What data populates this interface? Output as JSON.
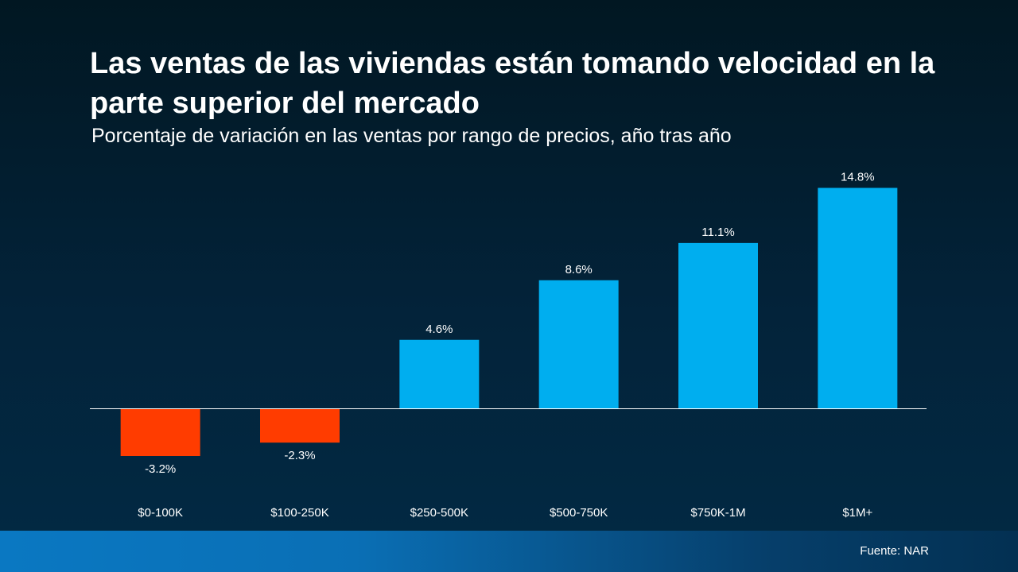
{
  "slide": {
    "title": "Las ventas de las viviendas están tomando velocidad en la parte superior del mercado",
    "subtitle": "Porcentaje de variación en las ventas por rango de precios, año tras año",
    "source": "Fuente: NAR"
  },
  "colors": {
    "positive": "#00aeef",
    "negative": "#ff3c00",
    "axis": "#ffffff",
    "text": "#ffffff"
  },
  "chart_data": {
    "type": "bar",
    "title": "",
    "xlabel": "",
    "ylabel": "",
    "categories": [
      "$0-100K",
      "$100-250K",
      "$250-500K",
      "$500-750K",
      "$750K-1M",
      "$1M+"
    ],
    "values": [
      -3.2,
      -2.3,
      4.6,
      8.6,
      11.1,
      14.8
    ],
    "data_labels": [
      "-3.2%",
      "-2.3%",
      "4.6%",
      "8.6%",
      "11.1%",
      "14.8%"
    ],
    "grid": false,
    "legend": "none"
  }
}
